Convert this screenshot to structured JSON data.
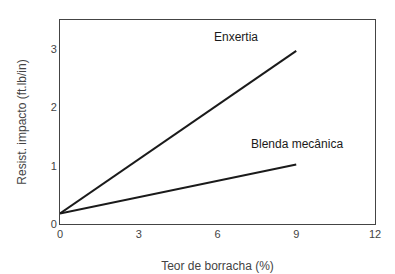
{
  "chart_data": {
    "type": "line",
    "xlabel": "Teor de borracha (%)",
    "ylabel": "Resist. impacto (ft.lb/in)",
    "xlim": [
      0,
      12
    ],
    "ylim": [
      0,
      3.5
    ],
    "xticks": [
      0,
      3,
      6,
      9,
      12
    ],
    "yticks": [
      0,
      1,
      2,
      3
    ],
    "grid": false,
    "color": "#1a1a1a",
    "series": [
      {
        "x": [
          0,
          9
        ],
        "values": [
          0.18,
          2.97
        ]
      },
      {
        "x": [
          0,
          9
        ],
        "values": [
          0.18,
          1.02
        ]
      }
    ],
    "annotations": [
      {
        "text": "Enxertia",
        "x": 5.8,
        "y": 3.05
      },
      {
        "text": "Blenda mecânica",
        "x": 7.2,
        "y": 1.22
      }
    ]
  }
}
